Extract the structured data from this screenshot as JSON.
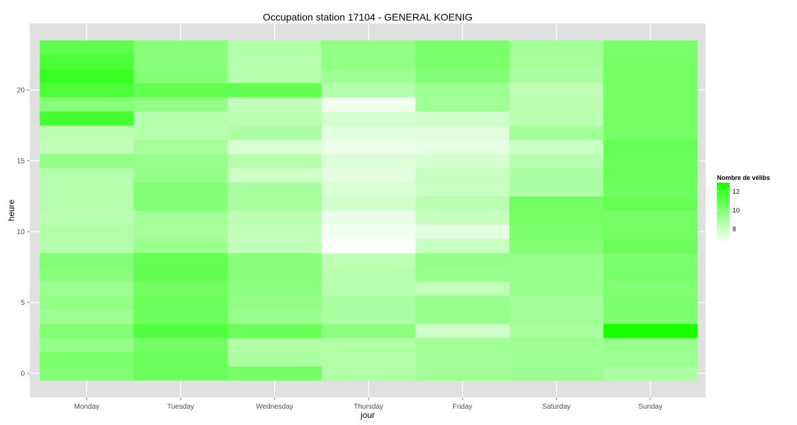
{
  "chart_data": {
    "type": "heatmap",
    "title": "Occupation station 17104 - GENERAL KOENIG",
    "xlabel": "jour",
    "ylabel": "heure",
    "x_categories": [
      "Monday",
      "Tuesday",
      "Wednesday",
      "Thursday",
      "Friday",
      "Saturday",
      "Sunday"
    ],
    "y_values": [
      0,
      1,
      2,
      3,
      4,
      5,
      6,
      7,
      8,
      9,
      10,
      11,
      12,
      13,
      14,
      15,
      16,
      17,
      18,
      19,
      20,
      21,
      22,
      23
    ],
    "y_ticks": [
      0,
      5,
      10,
      15,
      20
    ],
    "ylim": [
      -0.5,
      23.5
    ],
    "grid": true,
    "panel_background": "#e0e0e0",
    "legend": {
      "title": "Nombre de vélibs",
      "ticks": [
        8,
        10,
        12
      ],
      "range": [
        6.5,
        12.9
      ],
      "low_color": "#ffffff",
      "high_color": "#1aff00",
      "placement": "right"
    },
    "values": [
      [
        10.0,
        10.2,
        9.5,
        10.0,
        9.2,
        9.5,
        9.3,
        9.8,
        10.0,
        8.6,
        8.7,
        8.4,
        8.6,
        8.5,
        8.6,
        9.5,
        8.3,
        8.4,
        11.7,
        9.9,
        11.5,
        12.0,
        11.5,
        11.0
      ],
      [
        10.6,
        10.6,
        10.4,
        11.3,
        10.6,
        10.6,
        10.4,
        10.9,
        10.8,
        9.3,
        8.9,
        9.1,
        9.9,
        10.0,
        9.5,
        9.4,
        9.0,
        8.5,
        8.6,
        9.6,
        10.9,
        9.9,
        9.8,
        9.8
      ],
      [
        10.3,
        8.8,
        8.7,
        10.7,
        9.3,
        9.5,
        9.7,
        9.8,
        9.8,
        8.2,
        8.2,
        8.4,
        8.9,
        8.9,
        7.9,
        8.5,
        7.6,
        8.8,
        8.5,
        8.2,
        10.9,
        8.6,
        8.5,
        8.7
      ],
      [
        8.7,
        8.7,
        8.7,
        9.7,
        8.8,
        8.8,
        8.5,
        8.5,
        8.3,
        6.5,
        6.9,
        7.1,
        7.8,
        7.6,
        7.3,
        7.5,
        7.0,
        7.3,
        7.7,
        6.9,
        8.6,
        9.2,
        9.6,
        9.5
      ],
      [
        9.1,
        9.1,
        9.1,
        7.8,
        9.4,
        9.4,
        8.3,
        9.4,
        9.5,
        8.0,
        7.3,
        8.1,
        8.4,
        8.0,
        8.1,
        7.7,
        7.2,
        7.4,
        7.8,
        9.1,
        9.2,
        9.9,
        10.1,
        10.2
      ],
      [
        9.2,
        9.2,
        9.2,
        8.9,
        9.1,
        9.0,
        9.4,
        9.3,
        9.4,
        10.0,
        10.1,
        10.4,
        10.4,
        8.8,
        8.8,
        8.5,
        8.0,
        9.1,
        8.4,
        8.4,
        8.3,
        8.8,
        9.0,
        9.1
      ],
      [
        8.8,
        9.2,
        9.4,
        12.9,
        10.1,
        10.1,
        10.0,
        10.2,
        10.1,
        10.6,
        10.4,
        10.3,
        10.8,
        10.5,
        10.7,
        10.6,
        10.8,
        10.3,
        10.3,
        10.3,
        10.3,
        10.3,
        10.3,
        10.2
      ]
    ]
  }
}
